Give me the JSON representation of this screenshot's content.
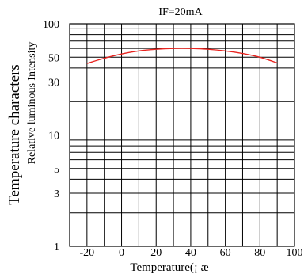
{
  "chart_data": {
    "type": "line",
    "title": "IF=20mA",
    "ylabel": "Temperature characters",
    "ylabel2": "Relative luminous Intensity",
    "xlabel": "Temperature(¡ æ",
    "xlim": [
      -30,
      100
    ],
    "ylim": [
      1,
      100
    ],
    "yscale": "log",
    "grid": true,
    "x_ticks": [
      -20,
      0,
      20,
      40,
      60,
      80,
      100
    ],
    "x_tick_labels": [
      "-20",
      "0",
      "20",
      "40",
      "60",
      "80",
      "100"
    ],
    "y_ticks": [
      100,
      50,
      30,
      10,
      5,
      3,
      1
    ],
    "y_tick_labels": [
      "100",
      "50",
      "30",
      "10",
      "5",
      "3",
      "1"
    ],
    "y_gridlines": [
      1,
      2,
      3,
      4,
      5,
      6,
      7,
      8,
      9,
      10,
      20,
      30,
      40,
      50,
      60,
      70,
      80,
      90,
      100
    ],
    "series": [
      {
        "color": "#e8231f",
        "x": [
          -20,
          -10,
          0,
          10,
          20,
          30,
          40,
          50,
          60,
          70,
          80,
          90
        ],
        "y": [
          44,
          49,
          53.5,
          57,
          59,
          60,
          60,
          59,
          57,
          54,
          50,
          44.5
        ]
      }
    ]
  }
}
